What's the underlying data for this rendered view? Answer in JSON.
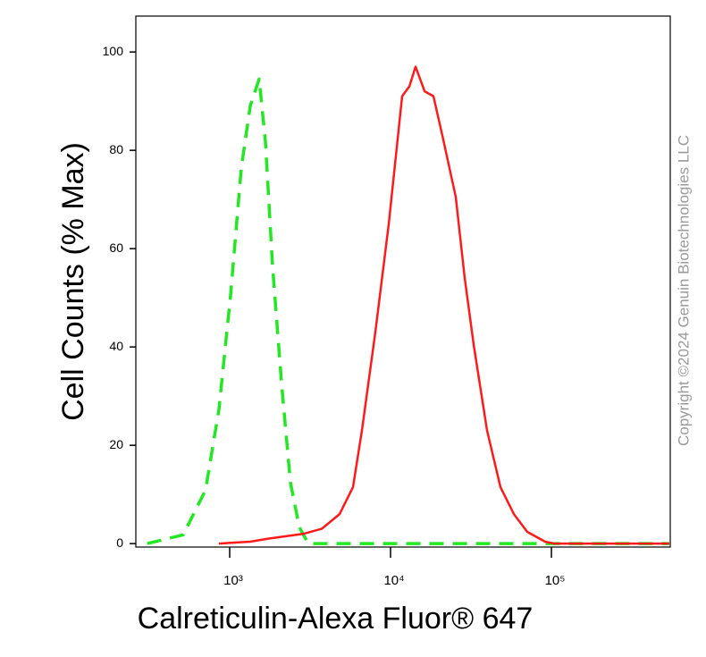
{
  "chart_data": {
    "type": "histogram-overlay",
    "x_label": "Calreticulin-Alexa Fluor® 647",
    "y_label": "Cell Counts (% Max)",
    "watermark": "Copyright ©2024 Genuin Biotechnologies LLC",
    "x_scale": "log",
    "xlim": [
      261,
      548000
    ],
    "xticks": [
      {
        "value": 1000,
        "label": "10³"
      },
      {
        "value": 10000,
        "label": "10⁴"
      },
      {
        "value": 100000,
        "label": "10⁵"
      }
    ],
    "ylim": [
      -0.7,
      107.3
    ],
    "yticks": [
      0,
      20,
      40,
      60,
      80,
      100
    ],
    "series": [
      {
        "color": "#22e822",
        "dashed": true,
        "x": [
          308,
          514,
          708,
          858,
          1013,
          1181,
          1342,
          1525,
          1668,
          1848,
          2099,
          2387,
          2712,
          3082,
          540000
        ],
        "values": [
          0,
          1.8,
          10.9,
          27.3,
          50.5,
          76.4,
          89,
          94.5,
          81.8,
          56.4,
          32.7,
          12.4,
          3.3,
          0,
          0
        ]
      },
      {
        "color": "#ff1a1a",
        "dashed": false,
        "x": [
          858,
          1342,
          1733,
          2891,
          3733,
          4821,
          5843,
          6637,
          8048,
          9750,
          11810,
          13090,
          14310,
          16270,
          18480,
          20990,
          25450,
          28910,
          32870,
          39810,
          48210,
          58430,
          70790,
          91410,
          104000,
          540000
        ],
        "values": [
          0,
          0.4,
          1,
          2,
          3,
          6,
          11.5,
          23,
          43,
          65,
          91,
          93,
          97,
          92,
          91,
          83,
          70.5,
          54,
          40.5,
          23,
          11.5,
          6,
          2.4,
          0.4,
          0,
          0
        ]
      }
    ]
  }
}
